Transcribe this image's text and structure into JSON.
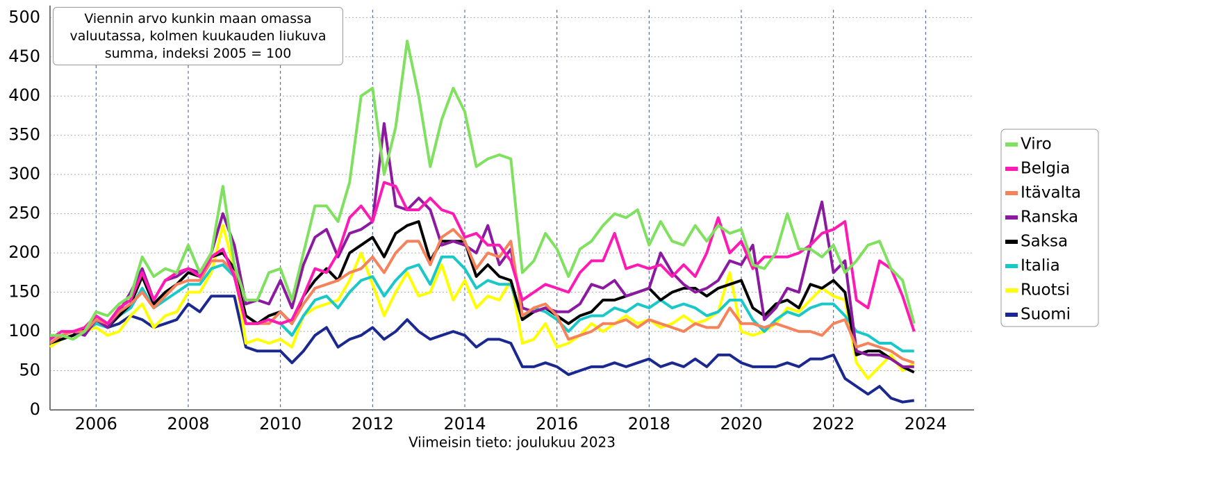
{
  "chart_data": {
    "type": "line",
    "title": "Viennin arvo kunkin maan omassa valuutassa, kolmen kuukauden liukuva summa, indeksi 2005 = 100",
    "footnote": "Viimeisin tieto: joulukuu 2023",
    "xlim": [
      2005,
      2025.05
    ],
    "ylim": [
      0,
      510
    ],
    "xticks": [
      2006,
      2008,
      2010,
      2012,
      2014,
      2016,
      2018,
      2020,
      2022,
      2024
    ],
    "yticks": [
      0,
      50,
      100,
      150,
      200,
      250,
      300,
      350,
      400,
      450,
      500
    ],
    "grid": true,
    "legend": "right",
    "x": [
      2005,
      2005.25,
      2005.5,
      2005.75,
      2006,
      2006.25,
      2006.5,
      2006.75,
      2007,
      2007.25,
      2007.5,
      2007.75,
      2008,
      2008.25,
      2008.5,
      2008.75,
      2009,
      2009.25,
      2009.5,
      2009.75,
      2010,
      2010.25,
      2010.5,
      2010.75,
      2011,
      2011.25,
      2011.5,
      2011.75,
      2012,
      2012.25,
      2012.5,
      2012.75,
      2013,
      2013.25,
      2013.5,
      2013.75,
      2014,
      2014.25,
      2014.5,
      2014.75,
      2015,
      2015.25,
      2015.5,
      2015.75,
      2016,
      2016.25,
      2016.5,
      2016.75,
      2017,
      2017.25,
      2017.5,
      2017.75,
      2018,
      2018.25,
      2018.5,
      2018.75,
      2019,
      2019.25,
      2019.5,
      2019.75,
      2020,
      2020.25,
      2020.5,
      2020.75,
      2021,
      2021.25,
      2021.5,
      2021.75,
      2022,
      2022.25,
      2022.5,
      2022.75,
      2023,
      2023.25,
      2023.5,
      2023.75
    ],
    "series": [
      {
        "name": "Viro",
        "color": "#80e060",
        "values": [
          95,
          95,
          90,
          100,
          125,
          120,
          135,
          145,
          195,
          170,
          180,
          175,
          210,
          175,
          200,
          285,
          185,
          140,
          140,
          175,
          180,
          140,
          200,
          260,
          260,
          240,
          290,
          400,
          410,
          300,
          360,
          470,
          400,
          310,
          370,
          410,
          380,
          310,
          320,
          325,
          320,
          175,
          190,
          225,
          205,
          170,
          205,
          215,
          235,
          250,
          245,
          255,
          210,
          240,
          215,
          210,
          235,
          215,
          235,
          225,
          230,
          185,
          180,
          200,
          250,
          205,
          205,
          195,
          210,
          175,
          190,
          210,
          215,
          180,
          165,
          110
        ]
      },
      {
        "name": "Belgia",
        "color": "#ff1ab3",
        "values": [
          90,
          100,
          100,
          105,
          120,
          110,
          130,
          140,
          175,
          140,
          165,
          175,
          180,
          170,
          195,
          205,
          170,
          110,
          110,
          115,
          110,
          115,
          145,
          180,
          175,
          200,
          245,
          260,
          240,
          290,
          285,
          255,
          255,
          270,
          255,
          250,
          220,
          225,
          210,
          210,
          190,
          140,
          150,
          160,
          155,
          150,
          175,
          190,
          190,
          225,
          180,
          185,
          180,
          185,
          170,
          185,
          170,
          200,
          245,
          200,
          215,
          180,
          195,
          195,
          195,
          200,
          210,
          225,
          230,
          240,
          140,
          130,
          190,
          180,
          145,
          100
        ]
      },
      {
        "name": "Itävalta",
        "color": "#f5825a",
        "values": [
          85,
          95,
          100,
          100,
          115,
          110,
          125,
          135,
          150,
          130,
          145,
          160,
          165,
          165,
          190,
          190,
          175,
          110,
          110,
          110,
          125,
          110,
          135,
          155,
          160,
          165,
          175,
          180,
          195,
          175,
          200,
          215,
          215,
          185,
          220,
          230,
          215,
          180,
          200,
          195,
          215,
          120,
          130,
          135,
          120,
          90,
          95,
          100,
          110,
          110,
          115,
          105,
          115,
          110,
          105,
          100,
          110,
          105,
          105,
          130,
          110,
          110,
          105,
          110,
          105,
          100,
          100,
          95,
          110,
          115,
          80,
          85,
          80,
          75,
          65,
          60
        ]
      },
      {
        "name": "Ranska",
        "color": "#8b1aa0",
        "values": [
          85,
          95,
          100,
          95,
          115,
          105,
          125,
          150,
          180,
          140,
          165,
          170,
          180,
          175,
          200,
          250,
          210,
          135,
          140,
          135,
          165,
          130,
          185,
          220,
          230,
          195,
          225,
          230,
          240,
          365,
          260,
          255,
          270,
          255,
          210,
          215,
          210,
          200,
          235,
          185,
          205,
          130,
          125,
          130,
          125,
          125,
          135,
          160,
          155,
          165,
          145,
          150,
          155,
          200,
          175,
          160,
          150,
          155,
          165,
          190,
          185,
          210,
          115,
          130,
          155,
          150,
          210,
          265,
          175,
          190,
          75,
          70,
          70,
          65,
          55,
          55
        ]
      },
      {
        "name": "Saksa",
        "color": "#000000",
        "values": [
          85,
          90,
          95,
          105,
          115,
          105,
          120,
          135,
          170,
          135,
          150,
          160,
          175,
          170,
          195,
          200,
          180,
          120,
          110,
          120,
          125,
          110,
          145,
          165,
          180,
          165,
          200,
          210,
          220,
          195,
          225,
          235,
          240,
          190,
          215,
          215,
          215,
          170,
          185,
          170,
          165,
          115,
          125,
          130,
          120,
          110,
          120,
          125,
          140,
          140,
          145,
          150,
          155,
          140,
          150,
          155,
          155,
          145,
          155,
          160,
          165,
          130,
          120,
          135,
          140,
          130,
          160,
          155,
          165,
          150,
          70,
          75,
          75,
          65,
          55,
          48
        ]
      },
      {
        "name": "Italia",
        "color": "#1ac8c8",
        "values": [
          85,
          90,
          95,
          100,
          110,
          105,
          120,
          130,
          155,
          130,
          140,
          150,
          160,
          160,
          180,
          185,
          170,
          110,
          110,
          115,
          110,
          95,
          120,
          140,
          145,
          130,
          150,
          165,
          170,
          145,
          165,
          180,
          185,
          160,
          195,
          195,
          180,
          155,
          165,
          160,
          160,
          115,
          130,
          125,
          115,
          100,
          115,
          120,
          120,
          130,
          125,
          135,
          130,
          140,
          130,
          135,
          130,
          120,
          125,
          140,
          140,
          115,
          100,
          115,
          125,
          120,
          130,
          135,
          135,
          120,
          100,
          95,
          85,
          85,
          75,
          75
        ]
      },
      {
        "name": "Ruotsi",
        "color": "#ffff00",
        "values": [
          80,
          90,
          95,
          100,
          105,
          95,
          100,
          120,
          135,
          105,
          120,
          125,
          150,
          150,
          175,
          235,
          180,
          85,
          90,
          85,
          90,
          80,
          120,
          130,
          135,
          140,
          165,
          200,
          160,
          120,
          150,
          175,
          145,
          150,
          185,
          140,
          165,
          130,
          145,
          140,
          165,
          85,
          90,
          110,
          80,
          85,
          95,
          110,
          100,
          110,
          120,
          110,
          115,
          105,
          110,
          120,
          110,
          115,
          125,
          175,
          100,
          95,
          100,
          110,
          130,
          125,
          140,
          155,
          145,
          140,
          60,
          40,
          55,
          70,
          50,
          60
        ]
      },
      {
        "name": "Suomi",
        "color": "#1a2890",
        "values": [
          85,
          90,
          95,
          100,
          115,
          105,
          110,
          120,
          115,
          105,
          110,
          115,
          135,
          125,
          145,
          145,
          145,
          80,
          75,
          75,
          75,
          60,
          75,
          95,
          105,
          80,
          90,
          95,
          105,
          90,
          100,
          115,
          100,
          90,
          95,
          100,
          95,
          80,
          90,
          90,
          85,
          55,
          55,
          60,
          55,
          45,
          50,
          55,
          55,
          60,
          55,
          60,
          65,
          55,
          60,
          55,
          65,
          55,
          70,
          70,
          60,
          55,
          55,
          55,
          60,
          55,
          65,
          65,
          70,
          40,
          30,
          20,
          30,
          15,
          10,
          12
        ]
      }
    ]
  }
}
